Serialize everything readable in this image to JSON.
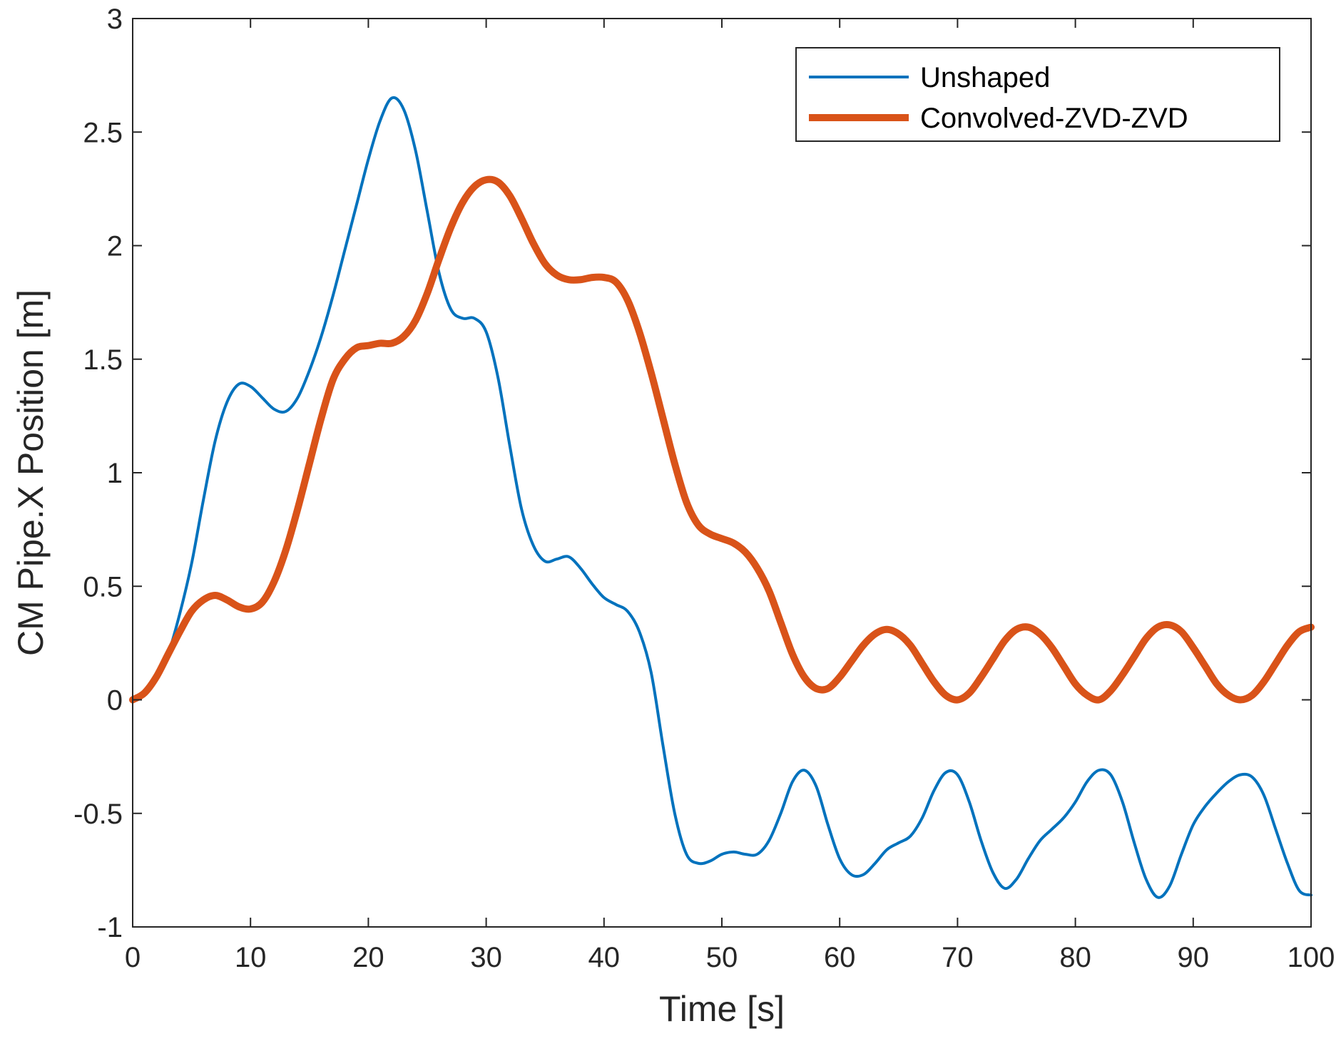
{
  "chart_data": {
    "type": "line",
    "title": "",
    "xlabel": "Time [s]",
    "ylabel": "CM Pipe.X Position [m]",
    "xlim": [
      0,
      100
    ],
    "ylim": [
      -1,
      3
    ],
    "xticks": [
      0,
      10,
      20,
      30,
      40,
      50,
      60,
      70,
      80,
      90,
      100
    ],
    "yticks": [
      -1,
      -0.5,
      0,
      0.5,
      1,
      1.5,
      2,
      2.5,
      3
    ],
    "xtick_labels": [
      "0",
      "10",
      "20",
      "30",
      "40",
      "50",
      "60",
      "70",
      "80",
      "90",
      "100"
    ],
    "ytick_labels": [
      "-1",
      "-0.5",
      "0",
      "0.5",
      "1",
      "1.5",
      "2",
      "2.5",
      "3"
    ],
    "grid": false,
    "legend_position": "top-right",
    "series": [
      {
        "name": "Unshaped",
        "color": "#0072BD",
        "line_width": 4,
        "x": [
          0,
          1,
          2,
          3,
          4,
          5,
          6,
          7,
          8,
          9,
          10,
          11,
          12,
          13,
          14,
          15,
          16,
          17,
          18,
          19,
          20,
          21,
          22,
          23,
          24,
          25,
          26,
          27,
          28,
          29,
          30,
          31,
          32,
          33,
          34,
          35,
          36,
          37,
          38,
          39,
          40,
          41,
          42,
          43,
          44,
          45,
          46,
          47,
          48,
          49,
          50,
          51,
          52,
          53,
          54,
          55,
          56,
          57,
          58,
          59,
          60,
          61,
          62,
          63,
          64,
          65,
          66,
          67,
          68,
          69,
          70,
          71,
          72,
          73,
          74,
          75,
          76,
          77,
          78,
          79,
          80,
          81,
          82,
          83,
          84,
          85,
          86,
          87,
          88,
          89,
          90,
          91,
          92,
          93,
          94,
          95,
          96,
          97,
          98,
          99,
          100
        ],
        "y": [
          0,
          0.03,
          0.1,
          0.2,
          0.38,
          0.6,
          0.88,
          1.14,
          1.31,
          1.39,
          1.38,
          1.33,
          1.28,
          1.27,
          1.33,
          1.45,
          1.6,
          1.78,
          1.98,
          2.18,
          2.38,
          2.55,
          2.65,
          2.6,
          2.42,
          2.15,
          1.88,
          1.72,
          1.68,
          1.68,
          1.62,
          1.42,
          1.12,
          0.84,
          0.68,
          0.61,
          0.62,
          0.63,
          0.58,
          0.51,
          0.45,
          0.42,
          0.39,
          0.3,
          0.12,
          -0.2,
          -0.5,
          -0.68,
          -0.72,
          -0.71,
          -0.68,
          -0.67,
          -0.68,
          -0.68,
          -0.62,
          -0.5,
          -0.36,
          -0.31,
          -0.38,
          -0.55,
          -0.7,
          -0.77,
          -0.77,
          -0.72,
          -0.66,
          -0.63,
          -0.6,
          -0.52,
          -0.4,
          -0.32,
          -0.33,
          -0.45,
          -0.62,
          -0.76,
          -0.83,
          -0.79,
          -0.7,
          -0.62,
          -0.57,
          -0.52,
          -0.45,
          -0.36,
          -0.31,
          -0.33,
          -0.45,
          -0.63,
          -0.79,
          -0.87,
          -0.82,
          -0.68,
          -0.55,
          -0.47,
          -0.41,
          -0.36,
          -0.33,
          -0.34,
          -0.42,
          -0.57,
          -0.72,
          -0.84,
          -0.86
        ]
      },
      {
        "name": "Convolved-ZVD-ZVD",
        "color": "#D95319",
        "line_width": 10,
        "x": [
          0,
          1,
          2,
          3,
          4,
          5,
          6,
          7,
          8,
          9,
          10,
          11,
          12,
          13,
          14,
          15,
          16,
          17,
          18,
          19,
          20,
          21,
          22,
          23,
          24,
          25,
          26,
          27,
          28,
          29,
          30,
          31,
          32,
          33,
          34,
          35,
          36,
          37,
          38,
          39,
          40,
          41,
          42,
          43,
          44,
          45,
          46,
          47,
          48,
          49,
          50,
          51,
          52,
          53,
          54,
          55,
          56,
          57,
          58,
          59,
          60,
          61,
          62,
          63,
          64,
          65,
          66,
          67,
          68,
          69,
          70,
          71,
          72,
          73,
          74,
          75,
          76,
          77,
          78,
          79,
          80,
          81,
          82,
          83,
          84,
          85,
          86,
          87,
          88,
          89,
          90,
          91,
          92,
          93,
          94,
          95,
          96,
          97,
          98,
          99,
          100
        ],
        "y": [
          0,
          0.03,
          0.1,
          0.2,
          0.3,
          0.39,
          0.44,
          0.46,
          0.44,
          0.41,
          0.4,
          0.43,
          0.52,
          0.66,
          0.84,
          1.04,
          1.24,
          1.41,
          1.5,
          1.55,
          1.56,
          1.57,
          1.57,
          1.6,
          1.67,
          1.79,
          1.94,
          2.08,
          2.19,
          2.26,
          2.29,
          2.28,
          2.22,
          2.12,
          2.01,
          1.92,
          1.87,
          1.85,
          1.85,
          1.86,
          1.86,
          1.84,
          1.76,
          1.62,
          1.44,
          1.24,
          1.04,
          0.87,
          0.77,
          0.73,
          0.71,
          0.69,
          0.65,
          0.58,
          0.48,
          0.34,
          0.2,
          0.1,
          0.05,
          0.05,
          0.1,
          0.17,
          0.24,
          0.29,
          0.31,
          0.29,
          0.24,
          0.16,
          0.08,
          0.02,
          0,
          0.03,
          0.1,
          0.18,
          0.26,
          0.31,
          0.32,
          0.29,
          0.23,
          0.15,
          0.07,
          0.02,
          0,
          0.04,
          0.11,
          0.19,
          0.27,
          0.32,
          0.33,
          0.3,
          0.23,
          0.15,
          0.07,
          0.02,
          0,
          0.02,
          0.08,
          0.16,
          0.24,
          0.3,
          0.32
        ]
      }
    ]
  }
}
